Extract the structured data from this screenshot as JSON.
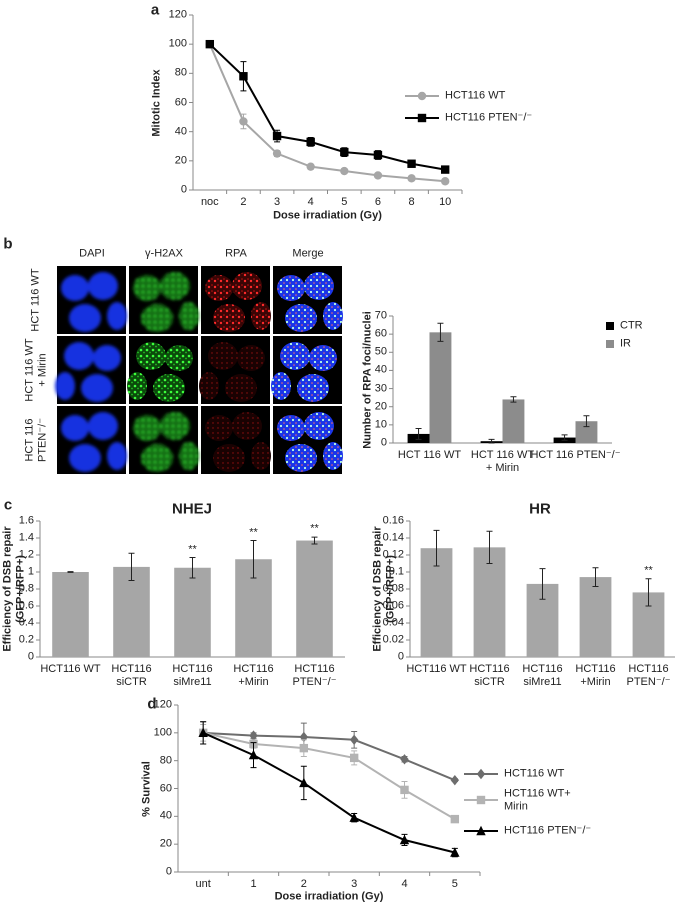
{
  "chart_data": [
    {
      "type": "line",
      "panel": "a",
      "x_label": "Dose irradiation (Gy)",
      "y_label": "Mitotic Index",
      "categories": [
        "noc",
        "2",
        "3",
        "4",
        "5",
        "6",
        "8",
        "10"
      ],
      "series": [
        {
          "name": "HCT116 WT",
          "color": "#a6a6a6",
          "marker": "circle",
          "values": [
            100,
            47,
            25,
            16,
            13,
            10,
            8,
            6
          ],
          "errors": [
            0,
            5,
            2,
            1,
            1,
            1,
            1,
            1
          ]
        },
        {
          "name": "HCT116 PTEN⁻/⁻",
          "color": "#000000",
          "marker": "square",
          "values": [
            100,
            78,
            37,
            33,
            26,
            24,
            18,
            14
          ],
          "errors": [
            0,
            10,
            4,
            3,
            3,
            3,
            2,
            2
          ]
        }
      ],
      "ylim": [
        0,
        120
      ],
      "yticks": [
        0,
        20,
        40,
        60,
        80,
        100,
        120
      ]
    },
    {
      "type": "bar",
      "panel": "b",
      "y_label": "Number of RPA foci/nuclei",
      "categories": [
        "HCT 116 WT",
        "HCT 116 WT\n+ Mirin",
        "HCT 116 PTEN⁻/⁻"
      ],
      "series": [
        {
          "name": "CTR",
          "color": "#000000",
          "values": [
            5,
            1,
            3
          ],
          "errors": [
            3,
            1,
            1.5
          ]
        },
        {
          "name": "IR",
          "color": "#8c8c8c",
          "values": [
            61,
            24,
            12
          ],
          "errors": [
            5,
            1.5,
            3
          ]
        }
      ],
      "ylim": [
        0,
        70
      ],
      "yticks": [
        0,
        10,
        20,
        30,
        40,
        50,
        60,
        70
      ]
    },
    {
      "type": "bar",
      "panel": "c",
      "title": "NHEJ",
      "y_label": "Efficiency of DSB repair\n(GFP+/RFP+)",
      "categories": [
        "HCT116 WT",
        "HCT116\nsiCTR",
        "HCT116\nsiMre11",
        "HCT116\n+Mirin",
        "HCT116\nPTEN⁻/⁻"
      ],
      "values": [
        1,
        1.06,
        1.05,
        1.15,
        1.37
      ],
      "errors": [
        0.005,
        0.16,
        0.12,
        0.22,
        0.04
      ],
      "color": "#a6a6a6",
      "significance": [
        null,
        null,
        "**",
        "**",
        "**"
      ],
      "ylim": [
        0,
        1.6
      ],
      "yticks": [
        0,
        0.2,
        0.4,
        0.6,
        0.8,
        1,
        1.2,
        1.4,
        1.6
      ]
    },
    {
      "type": "bar",
      "title": "HR",
      "y_label": "Efficiency of DSB repair\n(GFP+/RFP+)",
      "categories": [
        "HCT116 WT",
        "HCT116\nsiCTR",
        "HCT116\nsiMre11",
        "HCT116\n+Mirin",
        "HCT116\nPTEN⁻/⁻"
      ],
      "values": [
        0.128,
        0.129,
        0.086,
        0.094,
        0.076
      ],
      "errors": [
        0.021,
        0.019,
        0.018,
        0.011,
        0.016
      ],
      "color": "#a6a6a6",
      "significance": [
        null,
        null,
        null,
        null,
        "**"
      ],
      "ylim": [
        0,
        0.16
      ],
      "yticks": [
        0,
        0.02,
        0.04,
        0.06,
        0.08,
        0.1,
        0.12,
        0.14,
        0.16
      ]
    },
    {
      "type": "line",
      "panel": "d",
      "x_label": "Dose irradiation (Gy)",
      "y_label": "% Survival",
      "categories": [
        "unt",
        "1",
        "2",
        "3",
        "4",
        "5"
      ],
      "series": [
        {
          "name": "HCT116 WT",
          "color": "#6d6d6d",
          "marker": "diamond",
          "values": [
            100,
            98,
            97,
            95,
            81,
            66
          ],
          "errors": [
            8,
            2,
            10,
            6,
            2,
            1
          ]
        },
        {
          "name": "HCT116 WT+\nMirin",
          "color": "#b3b3b3",
          "marker": "square",
          "values": [
            100,
            92,
            89,
            82,
            59,
            38
          ],
          "errors": [
            6,
            3,
            6,
            5,
            6,
            1
          ]
        },
        {
          "name": "HCT116 PTEN⁻/⁻",
          "color": "#000000",
          "marker": "triangle",
          "values": [
            100,
            84,
            64,
            39,
            23,
            14
          ],
          "errors": [
            8,
            9,
            12,
            3,
            4,
            3
          ]
        }
      ],
      "ylim": [
        0,
        120
      ],
      "yticks": [
        0,
        20,
        40,
        60,
        80,
        100,
        120
      ]
    }
  ],
  "microscopy": {
    "columns": [
      "DAPI",
      "γ-H2AX",
      "RPA",
      "Merge"
    ],
    "rows": [
      "HCT 116 WT",
      "HCT 116 WT\n+ Mirin",
      "HCT 116\nPTEN⁻/⁻"
    ]
  }
}
